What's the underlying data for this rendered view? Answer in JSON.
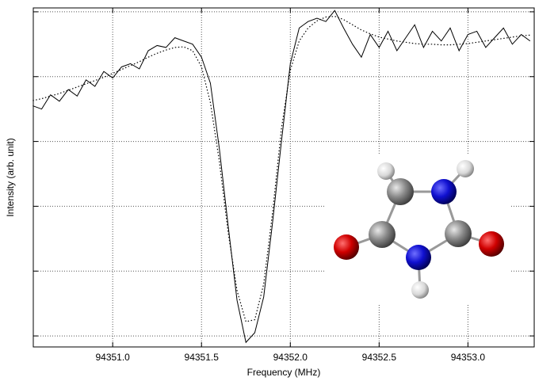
{
  "chart_data": {
    "type": "line",
    "x_label": "Frequency (MHz)",
    "y_label": "Intensity (arb. unit)",
    "x": [
      94350.55,
      94350.6,
      94350.65,
      94350.7,
      94350.75,
      94350.8,
      94350.85,
      94350.9,
      94350.95,
      94351.0,
      94351.05,
      94351.1,
      94351.15,
      94351.2,
      94351.25,
      94351.3,
      94351.35,
      94351.4,
      94351.45,
      94351.5,
      94351.55,
      94351.6,
      94351.65,
      94351.7,
      94351.75,
      94351.8,
      94351.85,
      94351.9,
      94351.95,
      94352.0,
      94352.05,
      94352.1,
      94352.15,
      94352.2,
      94352.25,
      94352.3,
      94352.35,
      94352.4,
      94352.45,
      94352.5,
      94352.55,
      94352.6,
      94352.65,
      94352.7,
      94352.75,
      94352.8,
      94352.85,
      94352.9,
      94352.95,
      94353.0,
      94353.05,
      94353.1,
      94353.15,
      94353.2,
      94353.25,
      94353.3,
      94353.35
    ],
    "series": [
      {
        "color": "#000000",
        "style": "solid",
        "values": [
          3.55,
          3.5,
          3.72,
          3.62,
          3.8,
          3.7,
          3.95,
          3.85,
          4.08,
          3.98,
          4.15,
          4.2,
          4.12,
          4.4,
          4.48,
          4.45,
          4.6,
          4.55,
          4.5,
          4.3,
          3.9,
          2.9,
          1.7,
          0.55,
          -0.1,
          0.05,
          0.6,
          1.75,
          3.0,
          4.2,
          4.75,
          4.85,
          4.9,
          4.85,
          5.02,
          4.75,
          4.5,
          4.3,
          4.65,
          4.45,
          4.7,
          4.4,
          4.6,
          4.8,
          4.45,
          4.7,
          4.55,
          4.75,
          4.4,
          4.65,
          4.7,
          4.45,
          4.6,
          4.75,
          4.5,
          4.65,
          4.55
        ]
      },
      {
        "color": "#000000",
        "style": "dotted",
        "values": [
          3.63,
          3.66,
          3.7,
          3.74,
          3.79,
          3.84,
          3.89,
          3.94,
          3.99,
          4.05,
          4.11,
          4.17,
          4.23,
          4.3,
          4.36,
          4.41,
          4.45,
          4.46,
          4.4,
          4.15,
          3.6,
          2.7,
          1.6,
          0.7,
          0.22,
          0.25,
          0.8,
          1.9,
          3.2,
          4.1,
          4.55,
          4.75,
          4.86,
          4.92,
          4.93,
          4.88,
          4.8,
          4.72,
          4.66,
          4.61,
          4.58,
          4.55,
          4.53,
          4.51,
          4.5,
          4.5,
          4.49,
          4.49,
          4.5,
          4.51,
          4.53,
          4.55,
          4.57,
          4.59,
          4.61,
          4.63,
          4.64
        ]
      }
    ],
    "xlim": [
      94350.553,
      94353.373
    ],
    "xticks": [
      {
        "value": 94351,
        "label": "94351.0"
      },
      94351.5,
      {
        "value": 94352,
        "label": "94352.0"
      },
      94352.5,
      {
        "value": 94353,
        "label": "94353.0"
      }
    ],
    "ylim": [
      -0.17,
      5.06
    ],
    "yticks": [
      0,
      1,
      2,
      3,
      4,
      5
    ],
    "grid": true
  }
}
